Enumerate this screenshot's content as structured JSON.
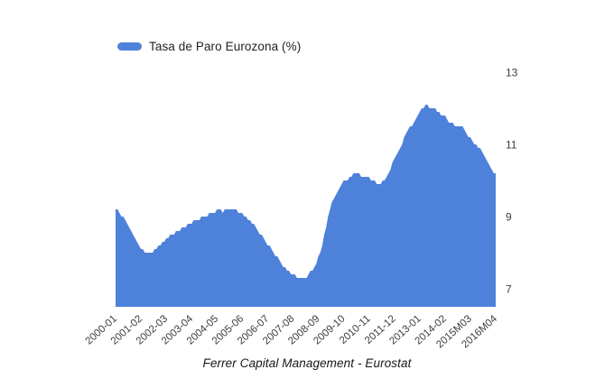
{
  "legend": {
    "label": "Tasa de Paro Eurozona (%)"
  },
  "caption": "Ferrer Capital Management - Eurostat",
  "chart_data": {
    "type": "area",
    "title": "",
    "series_name": "Tasa de Paro Eurozona (%)",
    "frequency": "monthly",
    "x_start": "2000-01",
    "x_end": "2016M04",
    "color": "#4e81da",
    "label_color": "#3c3c3c",
    "grid": false,
    "legend_position": "top-left",
    "y_axis_side": "right",
    "ylim": [
      6.5,
      13.5
    ],
    "y_ticks": [
      7,
      9,
      11,
      13
    ],
    "x_tick_labels": [
      "2000-01",
      "2001-02",
      "2002-03",
      "2003-04",
      "2004-05",
      "2005-06",
      "2006-07",
      "2007-08",
      "2008-09",
      "2009-10",
      "2010-11",
      "2011-12",
      "2013-01",
      "2014-02",
      "2015M03",
      "2016M04"
    ],
    "x_tick_month_indices": [
      0,
      13,
      26,
      39,
      52,
      65,
      78,
      91,
      104,
      117,
      130,
      143,
      156,
      169,
      182,
      195
    ],
    "values": [
      9.2,
      9.2,
      9.1,
      9.0,
      9.0,
      8.9,
      8.8,
      8.7,
      8.6,
      8.5,
      8.4,
      8.3,
      8.2,
      8.1,
      8.1,
      8.0,
      8.0,
      8.0,
      8.0,
      8.0,
      8.1,
      8.1,
      8.2,
      8.2,
      8.3,
      8.3,
      8.4,
      8.4,
      8.5,
      8.5,
      8.5,
      8.6,
      8.6,
      8.6,
      8.7,
      8.7,
      8.7,
      8.8,
      8.8,
      8.8,
      8.9,
      8.9,
      8.9,
      8.9,
      9.0,
      9.0,
      9.0,
      9.0,
      9.1,
      9.1,
      9.1,
      9.1,
      9.2,
      9.2,
      9.2,
      9.1,
      9.2,
      9.2,
      9.2,
      9.2,
      9.2,
      9.2,
      9.2,
      9.1,
      9.1,
      9.1,
      9.0,
      9.0,
      8.9,
      8.9,
      8.8,
      8.8,
      8.7,
      8.6,
      8.5,
      8.5,
      8.4,
      8.3,
      8.2,
      8.2,
      8.1,
      8.0,
      7.9,
      7.9,
      7.8,
      7.7,
      7.6,
      7.6,
      7.5,
      7.5,
      7.4,
      7.4,
      7.4,
      7.3,
      7.3,
      7.3,
      7.3,
      7.3,
      7.3,
      7.4,
      7.5,
      7.5,
      7.6,
      7.7,
      7.9,
      8.0,
      8.2,
      8.5,
      8.7,
      9.0,
      9.2,
      9.4,
      9.5,
      9.6,
      9.7,
      9.8,
      9.9,
      10.0,
      10.0,
      10.0,
      10.1,
      10.1,
      10.2,
      10.2,
      10.2,
      10.2,
      10.1,
      10.1,
      10.1,
      10.1,
      10.1,
      10.0,
      10.0,
      10.0,
      9.9,
      9.9,
      9.9,
      10.0,
      10.0,
      10.1,
      10.2,
      10.3,
      10.5,
      10.6,
      10.7,
      10.8,
      10.9,
      11.0,
      11.2,
      11.3,
      11.4,
      11.5,
      11.5,
      11.6,
      11.7,
      11.8,
      11.9,
      12.0,
      12.0,
      12.1,
      12.1,
      12.0,
      12.0,
      12.0,
      12.0,
      11.9,
      11.9,
      11.8,
      11.8,
      11.8,
      11.7,
      11.6,
      11.6,
      11.6,
      11.5,
      11.5,
      11.5,
      11.5,
      11.5,
      11.4,
      11.3,
      11.2,
      11.2,
      11.1,
      11.0,
      11.0,
      10.9,
      10.9,
      10.8,
      10.7,
      10.6,
      10.5,
      10.4,
      10.3,
      10.2,
      10.2
    ]
  }
}
